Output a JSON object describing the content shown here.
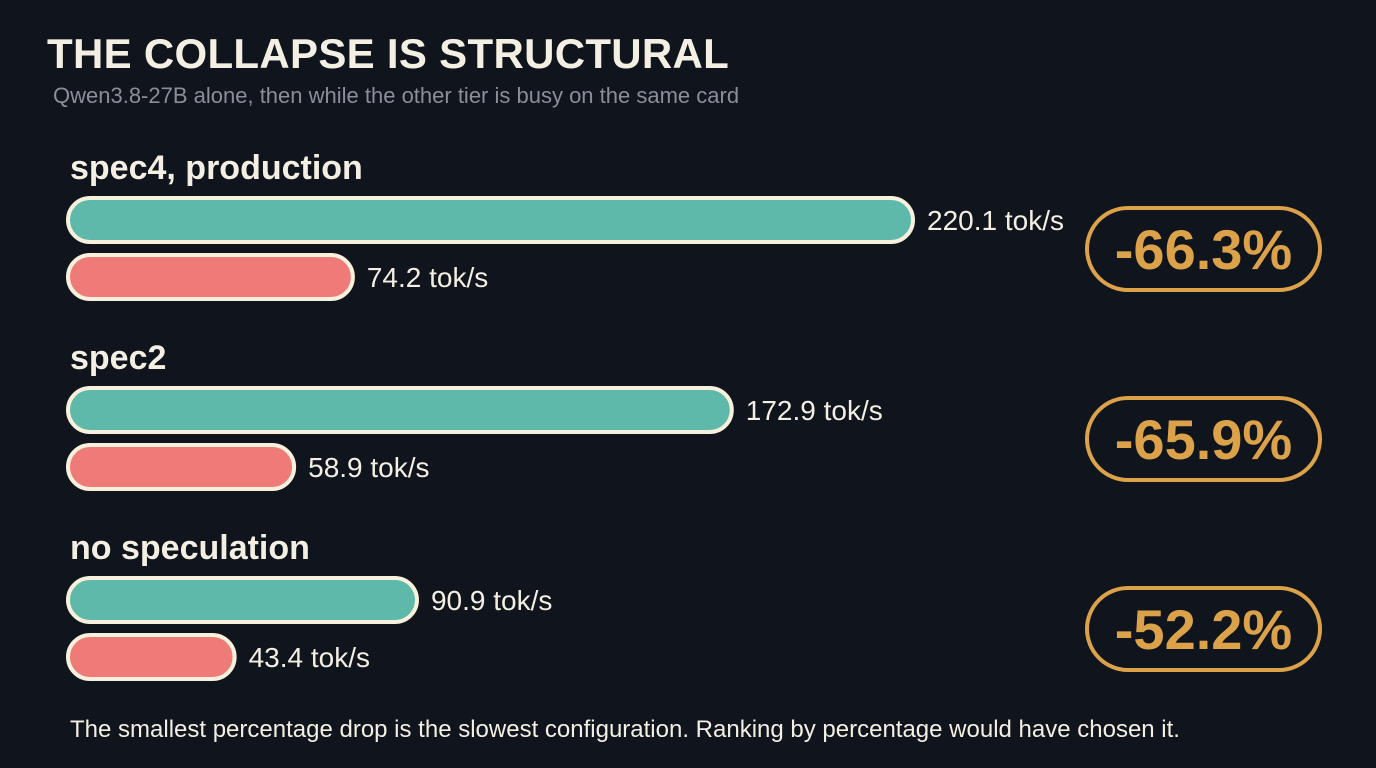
{
  "title": "THE COLLAPSE IS STRUCTURAL",
  "subtitle": "Qwen3.8-27B alone, then while the other tier is busy on the same card",
  "footnote": "The smallest percentage drop is the slowest configuration. Ranking by percentage would have chosen it.",
  "colors": {
    "background": "#10141d",
    "alone": "#5fb9aa",
    "busy": "#ef7b78",
    "bar_outline": "#f6f0dc",
    "badge": "#dba24a",
    "text": "#f3efe2",
    "subtitle": "#8b8e97"
  },
  "chart_data": {
    "type": "bar",
    "orientation": "horizontal",
    "unit": "tok/s",
    "categories": [
      "spec4, production",
      "spec2",
      "no speculation"
    ],
    "series": [
      {
        "values": [
          220.1,
          172.9,
          90.9
        ],
        "labels": [
          "220.1 tok/s",
          "172.9 tok/s",
          "90.9 tok/s"
        ]
      },
      {
        "values": [
          74.2,
          58.9,
          43.4
        ],
        "labels": [
          "74.2 tok/s",
          "58.9 tok/s",
          "43.4 tok/s"
        ]
      }
    ],
    "drop_labels": [
      "-66.3%",
      "-65.9%",
      "-52.2%"
    ],
    "xlim": [
      0,
      220.1
    ],
    "grid": false
  }
}
